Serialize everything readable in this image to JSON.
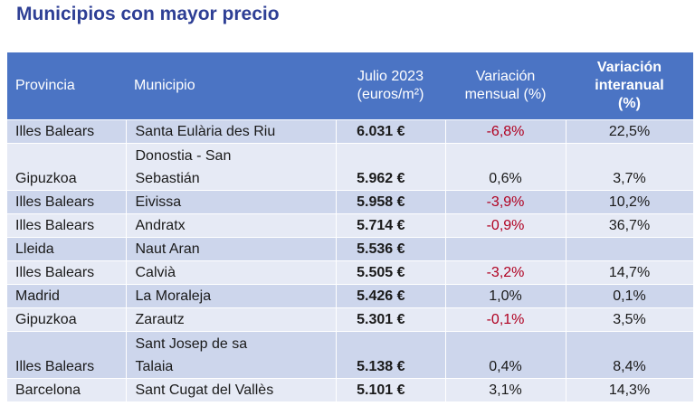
{
  "title": "Municipios con mayor precio",
  "headers": {
    "provincia": "Provincia",
    "municipio": "Municipio",
    "precio": [
      "Julio 2023",
      "(euros/m²)"
    ],
    "mensual": [
      "Variación",
      "mensual (%)"
    ],
    "interanual": [
      "Variación",
      "interanual",
      "(%)"
    ]
  },
  "rows": [
    {
      "provincia": "Illes Balears",
      "municipio": [
        "Santa Eulària des Riu"
      ],
      "precio": "6.031 €",
      "mensual": "-6,8%",
      "interanual": "22,5%"
    },
    {
      "provincia": "Gipuzkoa",
      "municipio": [
        "Donostia - San",
        "Sebastián"
      ],
      "precio": "5.962 €",
      "mensual": "0,6%",
      "interanual": "3,7%"
    },
    {
      "provincia": "Illes Balears",
      "municipio": [
        "Eivissa"
      ],
      "precio": "5.958 €",
      "mensual": "-3,9%",
      "interanual": "10,2%"
    },
    {
      "provincia": "Illes Balears",
      "municipio": [
        "Andratx"
      ],
      "precio": "5.714 €",
      "mensual": "-0,9%",
      "interanual": "36,7%"
    },
    {
      "provincia": "Lleida",
      "municipio": [
        "Naut Aran"
      ],
      "precio": "5.536 €",
      "mensual": "",
      "interanual": ""
    },
    {
      "provincia": "Illes Balears",
      "municipio": [
        "Calvià"
      ],
      "precio": "5.505 €",
      "mensual": "-3,2%",
      "interanual": "14,7%"
    },
    {
      "provincia": "Madrid",
      "municipio": [
        "La Moraleja"
      ],
      "precio": "5.426 €",
      "mensual": "1,0%",
      "interanual": "0,1%"
    },
    {
      "provincia": "Gipuzkoa",
      "municipio": [
        "Zarautz"
      ],
      "precio": "5.301 €",
      "mensual": "-0,1%",
      "interanual": "3,5%"
    },
    {
      "provincia": "Illes Balears",
      "municipio": [
        "Sant Josep de sa",
        "Talaia"
      ],
      "precio": "5.138 €",
      "mensual": "0,4%",
      "interanual": "8,4%"
    },
    {
      "provincia": "Barcelona",
      "municipio": [
        "Sant Cugat del Vallès"
      ],
      "precio": "5.101 €",
      "mensual": "3,1%",
      "interanual": "14,3%"
    }
  ],
  "colors": {
    "title": "#2e3f95",
    "header_bg": "#4b74c4",
    "row_dark": "#cdd6ec",
    "row_light": "#e6eaf5",
    "negative": "#b00020"
  }
}
